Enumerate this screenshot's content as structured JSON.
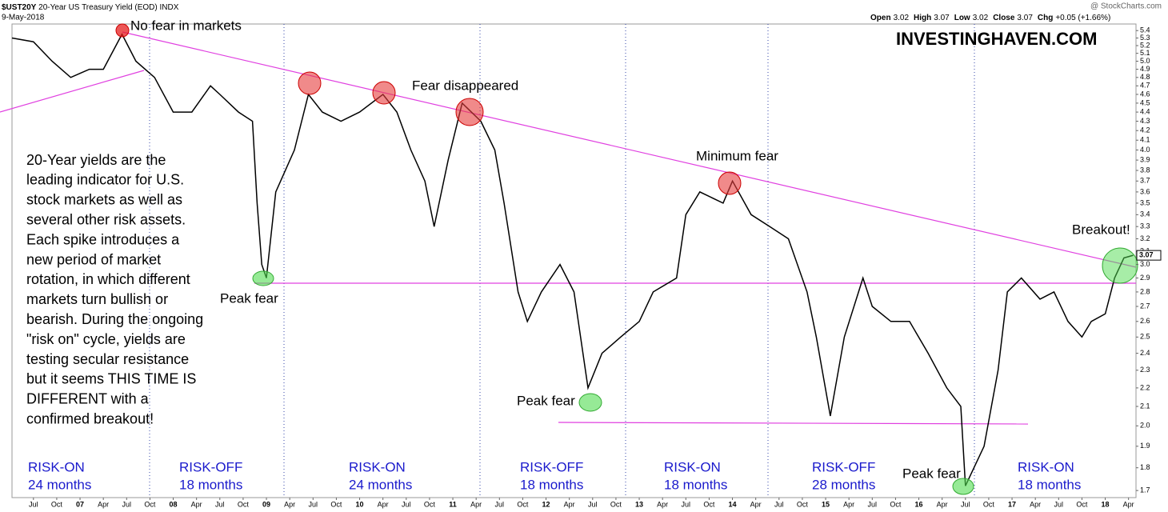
{
  "chart_data": {
    "type": "line",
    "title": "$UST20Y",
    "subtitle": "20-Year US Treasury Yield (EOD)",
    "exchange": "INDX",
    "date": "9-May-2018",
    "source": "@ StockCharts.com",
    "watermark": "INVESTINGHAVEN.COM",
    "quote": [
      {
        "label": "Open",
        "value": 3.02
      },
      {
        "label": "High",
        "value": 3.07
      },
      {
        "label": "Low",
        "value": 3.02
      },
      {
        "label": "Close",
        "value": 3.07
      },
      {
        "label": "Chg",
        "value": "+0.05 (+1.66%)"
      }
    ],
    "color": "#000000",
    "log": true,
    "grid": false,
    "x": [
      2006.27,
      2006.5,
      2006.7,
      2006.9,
      2007.0,
      2007.1,
      2007.25,
      2007.45,
      2007.6,
      2007.8,
      2008.0,
      2008.2,
      2008.4,
      2008.5,
      2008.7,
      2008.85,
      2008.9,
      2008.95,
      2009.0,
      2009.1,
      2009.3,
      2009.45,
      2009.6,
      2009.8,
      2010.0,
      2010.25,
      2010.4,
      2010.55,
      2010.7,
      2010.8,
      2010.95,
      2011.1,
      2011.3,
      2011.45,
      2011.55,
      2011.7,
      2011.8,
      2011.95,
      2012.15,
      2012.3,
      2012.45,
      2012.6,
      2012.8,
      2013.0,
      2013.15,
      2013.4,
      2013.5,
      2013.65,
      2013.9,
      2014.0,
      2014.2,
      2014.4,
      2014.6,
      2014.8,
      2014.9,
      2015.05,
      2015.2,
      2015.4,
      2015.5,
      2015.7,
      2015.9,
      2016.1,
      2016.3,
      2016.45,
      2016.5,
      2016.7,
      2016.85,
      2016.95,
      2017.1,
      2017.3,
      2017.45,
      2017.6,
      2017.75,
      2017.85,
      2018.0,
      2018.1,
      2018.2,
      2018.3
    ],
    "values": [
      5.3,
      5.25,
      5.0,
      4.8,
      4.85,
      4.9,
      4.9,
      5.35,
      5.0,
      4.8,
      4.4,
      4.4,
      4.7,
      4.6,
      4.4,
      4.3,
      3.5,
      3.0,
      2.9,
      3.6,
      4.0,
      4.6,
      4.4,
      4.3,
      4.4,
      4.6,
      4.4,
      4.0,
      3.7,
      3.3,
      3.9,
      4.5,
      4.3,
      4.0,
      3.5,
      2.8,
      2.6,
      2.8,
      3.0,
      2.8,
      2.2,
      2.4,
      2.5,
      2.6,
      2.8,
      2.9,
      3.4,
      3.6,
      3.5,
      3.7,
      3.4,
      3.3,
      3.2,
      2.8,
      2.5,
      2.05,
      2.5,
      2.9,
      2.7,
      2.6,
      2.6,
      2.4,
      2.2,
      2.1,
      1.72,
      1.9,
      2.3,
      2.8,
      2.9,
      2.75,
      2.8,
      2.6,
      2.5,
      2.6,
      2.65,
      2.9,
      3.05,
      3.07
    ],
    "xlim": [
      2006.27,
      2018.33
    ],
    "ylim": [
      1.67,
      5.49
    ],
    "xticks": [
      {
        "value": 2006.5,
        "label": "Jul"
      },
      {
        "value": 2006.75,
        "label": "Oct"
      },
      {
        "value": 2007,
        "label": "07"
      },
      {
        "value": 2007.25,
        "label": "Apr"
      },
      {
        "value": 2007.5,
        "label": "Jul"
      },
      {
        "value": 2007.75,
        "label": "Oct"
      },
      {
        "value": 2008,
        "label": "08"
      },
      {
        "value": 2008.25,
        "label": "Apr"
      },
      {
        "value": 2008.5,
        "label": "Jul"
      },
      {
        "value": 2008.75,
        "label": "Oct"
      },
      {
        "value": 2009,
        "label": "09"
      },
      {
        "value": 2009.25,
        "label": "Apr"
      },
      {
        "value": 2009.5,
        "label": "Jul"
      },
      {
        "value": 2009.75,
        "label": "Oct"
      },
      {
        "value": 2010,
        "label": "10"
      },
      {
        "value": 2010.25,
        "label": "Apr"
      },
      {
        "value": 2010.5,
        "label": "Jul"
      },
      {
        "value": 2010.75,
        "label": "Oct"
      },
      {
        "value": 2011,
        "label": "11"
      },
      {
        "value": 2011.25,
        "label": "Apr"
      },
      {
        "value": 2011.5,
        "label": "Jul"
      },
      {
        "value": 2011.75,
        "label": "Oct"
      },
      {
        "value": 2012,
        "label": "12"
      },
      {
        "value": 2012.25,
        "label": "Apr"
      },
      {
        "value": 2012.5,
        "label": "Jul"
      },
      {
        "value": 2012.75,
        "label": "Oct"
      },
      {
        "value": 2013,
        "label": "13"
      },
      {
        "value": 2013.25,
        "label": "Apr"
      },
      {
        "value": 2013.5,
        "label": "Jul"
      },
      {
        "value": 2013.75,
        "label": "Oct"
      },
      {
        "value": 2014,
        "label": "14"
      },
      {
        "value": 2014.25,
        "label": "Apr"
      },
      {
        "value": 2014.5,
        "label": "Jul"
      },
      {
        "value": 2014.75,
        "label": "Oct"
      },
      {
        "value": 2015,
        "label": "15"
      },
      {
        "value": 2015.25,
        "label": "Apr"
      },
      {
        "value": 2015.5,
        "label": "Jul"
      },
      {
        "value": 2015.75,
        "label": "Oct"
      },
      {
        "value": 2016,
        "label": "16"
      },
      {
        "value": 2016.25,
        "label": "Apr"
      },
      {
        "value": 2016.5,
        "label": "Jul"
      },
      {
        "value": 2016.75,
        "label": "Oct"
      },
      {
        "value": 2017,
        "label": "17"
      },
      {
        "value": 2017.25,
        "label": "Apr"
      },
      {
        "value": 2017.5,
        "label": "Jul"
      },
      {
        "value": 2017.75,
        "label": "Oct"
      },
      {
        "value": 2018,
        "label": "18"
      },
      {
        "value": 2018.25,
        "label": "Apr"
      }
    ],
    "yticks": [
      1.7,
      1.8,
      1.9,
      {
        "value": 2,
        "label": "2.0"
      },
      2.1,
      2.2,
      2.3,
      2.4,
      2.5,
      2.6,
      2.7,
      2.8,
      2.9,
      {
        "value": 3,
        "label": "3.0"
      },
      3.1,
      3.2,
      3.3,
      3.4,
      3.5,
      3.6,
      3.7,
      3.8,
      3.9,
      {
        "value": 4,
        "label": "4.0"
      },
      4.1,
      4.2,
      4.3,
      4.4,
      4.5,
      4.6,
      4.7,
      4.8,
      4.9,
      {
        "value": 5,
        "label": "5.0"
      },
      5.1,
      5.2,
      5.3,
      5.4
    ],
    "annotations": [
      "No fear in markets",
      "Fear disappeared",
      "Minimum fear",
      "Breakout!",
      "Peak fear",
      "Peak fear",
      "Peak fear"
    ],
    "note_lines": [
      "20-Year yields are the",
      "leading indicator for U.S.",
      "stock markets as well as",
      "several other risk assets.",
      "Each spike introduces a",
      "new period of market",
      "rotation, in which different",
      "markets turn bullish or",
      "bearish. During the ongoing",
      "\"risk on\" cycle, yields are",
      "testing secular resistance",
      "but it seems THIS TIME IS",
      "DIFFERENT with a",
      "confirmed breakout!"
    ],
    "phases": [
      {
        "label": "RISK-ON",
        "duration": "24 months"
      },
      {
        "label": "RISK-OFF",
        "duration": "18 months"
      },
      {
        "label": "RISK-ON",
        "duration": "24 months"
      },
      {
        "label": "RISK-OFF",
        "duration": "18 months"
      },
      {
        "label": "RISK-ON",
        "duration": "18 months"
      },
      {
        "label": "RISK-OFF",
        "duration": "28 months"
      },
      {
        "label": "RISK-ON",
        "duration": "18 months"
      }
    ]
  }
}
